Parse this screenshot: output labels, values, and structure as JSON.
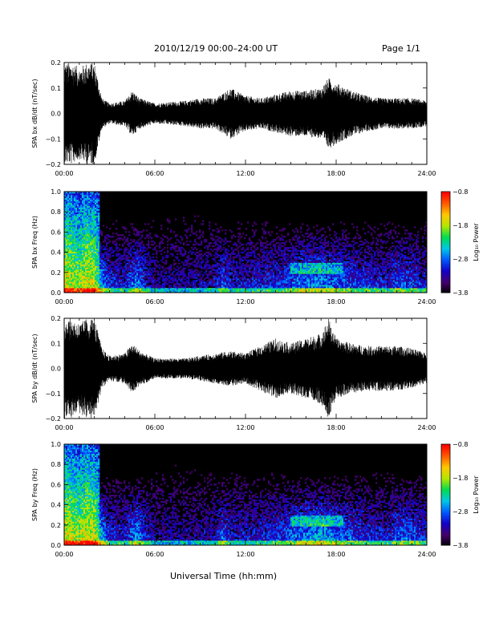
{
  "header": {
    "title": "2010/12/19   00:00–24:00 UT",
    "page_label": "Page 1/1"
  },
  "xlabel": "Universal Time (hh:mm)",
  "colors": {
    "trace": "#000000",
    "background": "#000000"
  },
  "chart_data": [
    {
      "type": "line",
      "ylabel": "SPA bx dB/dt (nT/sec)",
      "xlim": [
        0,
        24
      ],
      "ylim": [
        -0.2,
        0.2
      ],
      "x_ticks": [
        "00:00",
        "06:00",
        "12:00",
        "18:00",
        "24:00"
      ],
      "y_ticks": [
        "0.2",
        "0.1",
        "0.0",
        "−0.1",
        "−0.2"
      ],
      "envelope": {
        "hours": [
          0,
          0.5,
          1.0,
          1.5,
          2.0,
          2.5,
          3.0,
          4.0,
          4.5,
          5.0,
          6.0,
          7.0,
          8.0,
          9.0,
          10.0,
          11.0,
          12.0,
          13.0,
          14.0,
          15.0,
          16.0,
          17.0,
          17.5,
          18.0,
          19.0,
          20.0,
          21.0,
          22.0,
          23.0,
          24.0
        ],
        "amplitude": [
          0.2,
          0.2,
          0.18,
          0.2,
          0.2,
          0.06,
          0.04,
          0.05,
          0.09,
          0.06,
          0.04,
          0.045,
          0.05,
          0.06,
          0.06,
          0.1,
          0.07,
          0.06,
          0.075,
          0.09,
          0.09,
          0.1,
          0.14,
          0.12,
          0.09,
          0.07,
          0.06,
          0.06,
          0.06,
          0.05
        ]
      }
    },
    {
      "type": "heatmap",
      "ylabel": "SPA bx Freq (Hz)",
      "xlim": [
        0,
        24
      ],
      "ylim": [
        0.0,
        1.0
      ],
      "x_ticks": [
        "00:00",
        "06:00",
        "12:00",
        "18:00",
        "24:00"
      ],
      "y_ticks": [
        "1.0",
        "0.8",
        "0.6",
        "0.4",
        "0.2",
        "0.0"
      ],
      "colorbar": {
        "label": "Log₁₀ Power",
        "ticks": [
          "−0.8",
          "−1.8",
          "−2.8",
          "−3.8"
        ],
        "range": [
          -3.8,
          -0.8
        ]
      },
      "activity": {
        "hours": [
          0,
          0.5,
          1.0,
          1.5,
          2.0,
          2.5,
          3.0,
          4.0,
          4.8,
          5.5,
          6.0,
          8.0,
          10.0,
          10.5,
          11.0,
          12.0,
          14.0,
          15.0,
          16.0,
          17.0,
          18.0,
          20.0,
          21.5,
          22.0,
          23.0,
          24.0
        ],
        "level": [
          0.95,
          0.9,
          0.8,
          0.95,
          0.9,
          0.6,
          0.35,
          0.3,
          0.55,
          0.3,
          0.2,
          0.2,
          0.25,
          0.45,
          0.3,
          0.3,
          0.35,
          0.45,
          0.5,
          0.55,
          0.45,
          0.35,
          0.3,
          0.45,
          0.4,
          0.3
        ]
      }
    },
    {
      "type": "line",
      "ylabel": "SPA by dB/dt (nT/sec)",
      "xlim": [
        0,
        24
      ],
      "ylim": [
        -0.2,
        0.2
      ],
      "x_ticks": [
        "00:00",
        "06:00",
        "12:00",
        "18:00",
        "24:00"
      ],
      "y_ticks": [
        "0.2",
        "0.1",
        "0.0",
        "−0.1",
        "−0.2"
      ],
      "envelope": {
        "hours": [
          0,
          0.5,
          1.0,
          1.5,
          2.0,
          2.5,
          3.0,
          4.0,
          4.5,
          5.0,
          6.0,
          7.0,
          8.0,
          9.0,
          10.0,
          11.0,
          12.0,
          13.0,
          14.0,
          15.0,
          16.0,
          17.0,
          17.5,
          18.0,
          19.0,
          20.0,
          21.0,
          22.0,
          23.0,
          24.0
        ],
        "amplitude": [
          0.2,
          0.2,
          0.18,
          0.2,
          0.2,
          0.08,
          0.05,
          0.06,
          0.1,
          0.07,
          0.04,
          0.04,
          0.04,
          0.05,
          0.06,
          0.07,
          0.06,
          0.09,
          0.12,
          0.1,
          0.12,
          0.14,
          0.2,
          0.12,
          0.1,
          0.09,
          0.09,
          0.09,
          0.08,
          0.06
        ]
      }
    },
    {
      "type": "heatmap",
      "ylabel": "SPA by Freq (Hz)",
      "xlim": [
        0,
        24
      ],
      "ylim": [
        0.0,
        1.0
      ],
      "x_ticks": [
        "00:00",
        "06:00",
        "12:00",
        "18:00",
        "24:00"
      ],
      "y_ticks": [
        "1.0",
        "0.8",
        "0.6",
        "0.4",
        "0.2",
        "0.0"
      ],
      "colorbar": {
        "label": "Log₁₀ Power",
        "ticks": [
          "−0.8",
          "−1.8",
          "−2.8",
          "−3.8"
        ],
        "range": [
          -3.8,
          -0.8
        ]
      },
      "activity": {
        "hours": [
          0,
          0.5,
          1.0,
          1.5,
          2.0,
          2.5,
          3.0,
          4.0,
          4.8,
          5.5,
          6.0,
          8.0,
          10.0,
          10.5,
          11.0,
          12.0,
          14.0,
          15.0,
          16.0,
          17.0,
          18.0,
          20.0,
          21.5,
          22.0,
          23.0,
          24.0
        ],
        "level": [
          0.95,
          0.9,
          0.85,
          0.95,
          0.9,
          0.6,
          0.35,
          0.3,
          0.55,
          0.3,
          0.2,
          0.2,
          0.25,
          0.45,
          0.3,
          0.3,
          0.35,
          0.45,
          0.55,
          0.6,
          0.5,
          0.35,
          0.3,
          0.45,
          0.45,
          0.3
        ]
      }
    }
  ]
}
